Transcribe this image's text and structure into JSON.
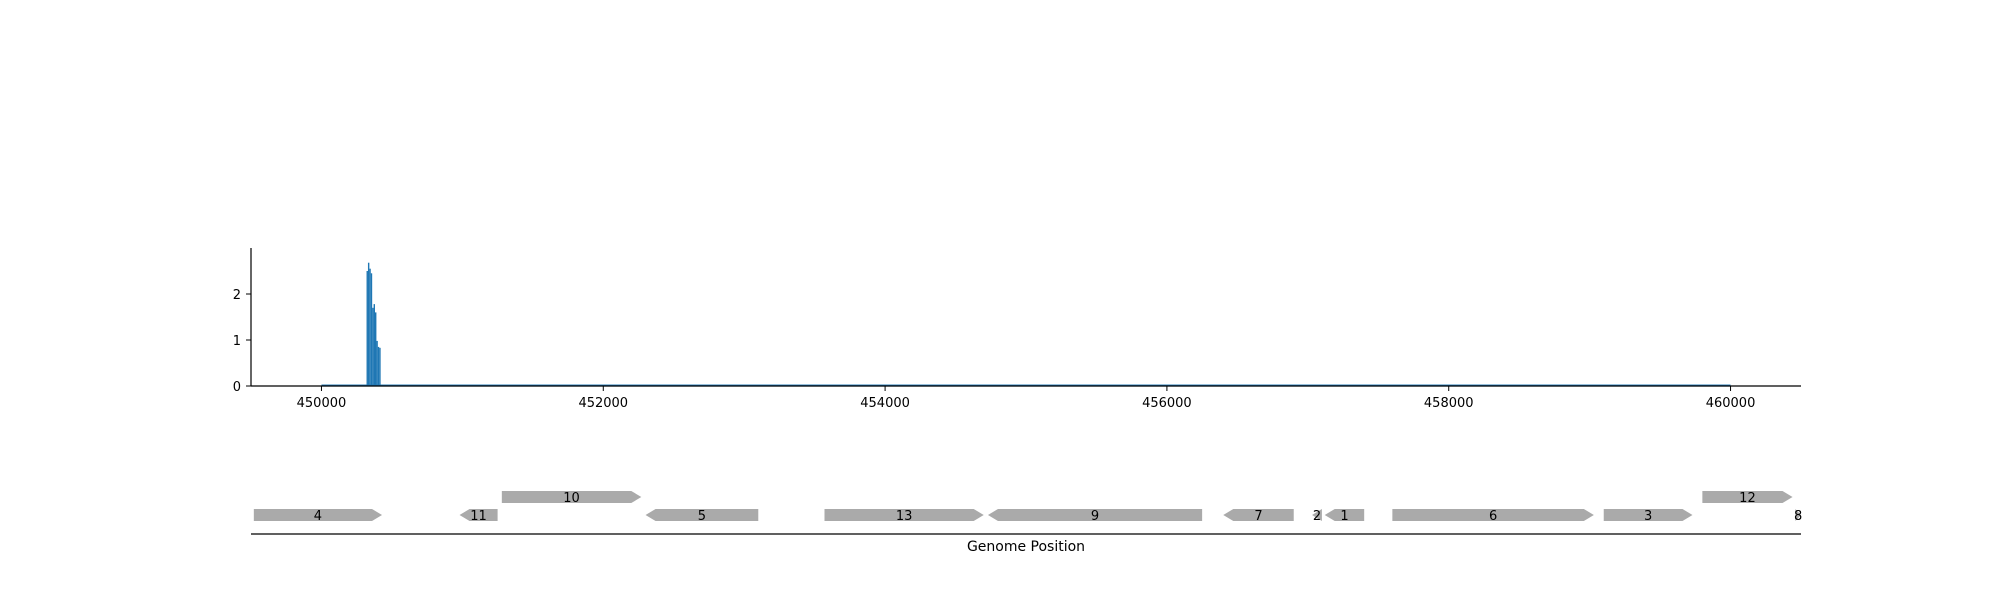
{
  "chart_data": [
    {
      "type": "bar",
      "title": "",
      "xlabel": "",
      "ylabel": "",
      "xlim": [
        449500,
        460500
      ],
      "ylim": [
        0,
        3
      ],
      "xticks": [
        450000,
        452000,
        454000,
        456000,
        458000,
        460000
      ],
      "yticks": [
        0,
        1,
        2
      ],
      "grid": false,
      "legend": "none",
      "color": "#1f77b4",
      "bin_width": 10,
      "baseline": {
        "x_start": 450000,
        "x_end": 460000,
        "value": 0.01
      },
      "x": [
        450320,
        450330,
        450340,
        450350,
        450360,
        450370,
        450380,
        450390,
        450400,
        450410
      ],
      "values": [
        2.5,
        2.68,
        2.55,
        2.45,
        1.7,
        1.78,
        1.6,
        0.98,
        0.85,
        0.83
      ]
    },
    {
      "type": "gene_track",
      "xlabel": "Genome Position",
      "xlim": [
        449500,
        460500
      ],
      "color": "#aaaaaa",
      "genes": [
        {
          "label": "4",
          "start": 449520,
          "end": 450430,
          "strand": "+",
          "row": 0
        },
        {
          "label": "11",
          "start": 450980,
          "end": 451250,
          "strand": "-",
          "row": 0
        },
        {
          "label": "10",
          "start": 451280,
          "end": 452270,
          "strand": "+",
          "row": 1
        },
        {
          "label": "5",
          "start": 452300,
          "end": 453100,
          "strand": "-",
          "row": 0
        },
        {
          "label": "13",
          "start": 453570,
          "end": 454700,
          "strand": "+",
          "row": 0
        },
        {
          "label": "9",
          "start": 454730,
          "end": 456250,
          "strand": "-",
          "row": 0
        },
        {
          "label": "7",
          "start": 456400,
          "end": 456900,
          "strand": "-",
          "row": 0
        },
        {
          "label": "2",
          "start": 457030,
          "end": 457100,
          "strand": "-",
          "row": 0
        },
        {
          "label": "1",
          "start": 457120,
          "end": 457400,
          "strand": "-",
          "row": 0
        },
        {
          "label": "6",
          "start": 457600,
          "end": 459030,
          "strand": "+",
          "row": 0
        },
        {
          "label": "3",
          "start": 459100,
          "end": 459730,
          "strand": "+",
          "row": 0
        },
        {
          "label": "12",
          "start": 459800,
          "end": 460440,
          "strand": "+",
          "row": 1
        },
        {
          "label": "8",
          "start": 460460,
          "end": 460500,
          "strand": "+",
          "row": 0
        }
      ]
    }
  ]
}
